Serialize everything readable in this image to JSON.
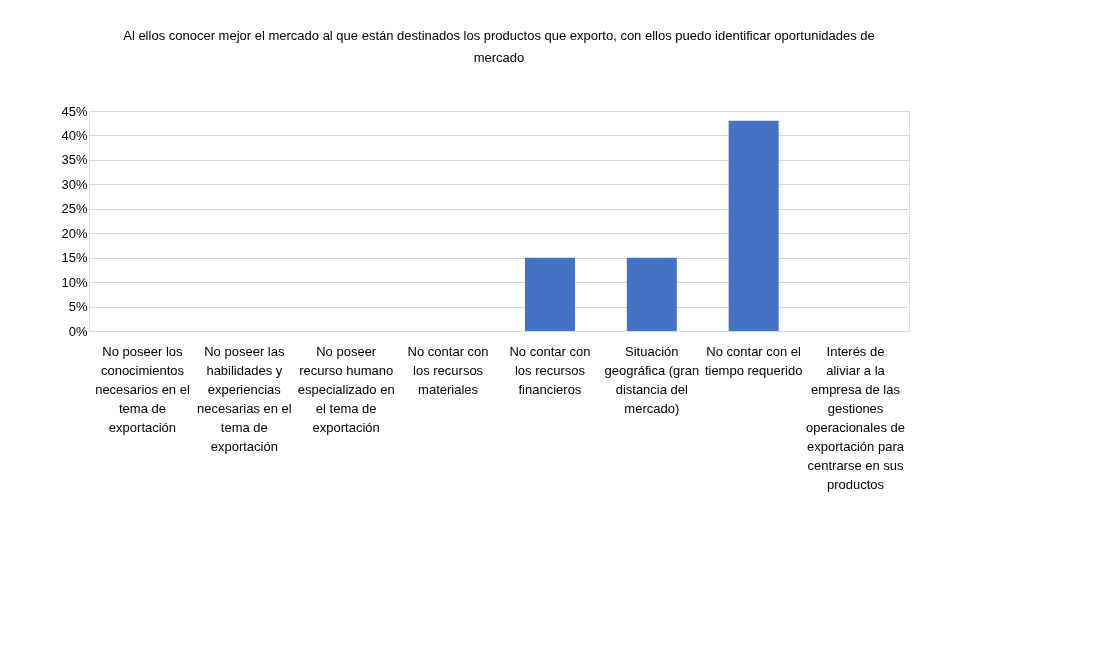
{
  "chart_data": {
    "type": "bar",
    "title": "Al ellos conocer mejor el mercado al que están destinados los productos que exporto, con ellos puedo identificar oportunidades de mercado",
    "categories": [
      "No poseer los conocimientos necesarios en el tema de exportación",
      "No poseer las habilidades y experiencias necesarias en el tema de exportación",
      "No poseer recurso humano especializado en el tema de exportación",
      "No contar con los recursos materiales",
      "No contar con los recursos financieros",
      "Situación geográfica (gran distancia del mercado)",
      "No contar con el tiempo requerido",
      "Interés de aliviar a la empresa de las gestiones operacionales de exportación para centrarse en sus productos"
    ],
    "values": [
      0,
      0,
      0,
      0,
      15,
      15,
      43,
      0
    ],
    "color": "#4472c4",
    "ylim": [
      0,
      45
    ],
    "yticks": [
      {
        "value": 0,
        "label": "0%"
      },
      {
        "value": 5,
        "label": "5%"
      },
      {
        "value": 10,
        "label": "10%"
      },
      {
        "value": 15,
        "label": "15%"
      },
      {
        "value": 20,
        "label": "20%"
      },
      {
        "value": 25,
        "label": "25%"
      },
      {
        "value": 30,
        "label": "30%"
      },
      {
        "value": 35,
        "label": "35%"
      },
      {
        "value": 40,
        "label": "40%"
      },
      {
        "value": 45,
        "label": "45%"
      }
    ],
    "grid": "y"
  }
}
